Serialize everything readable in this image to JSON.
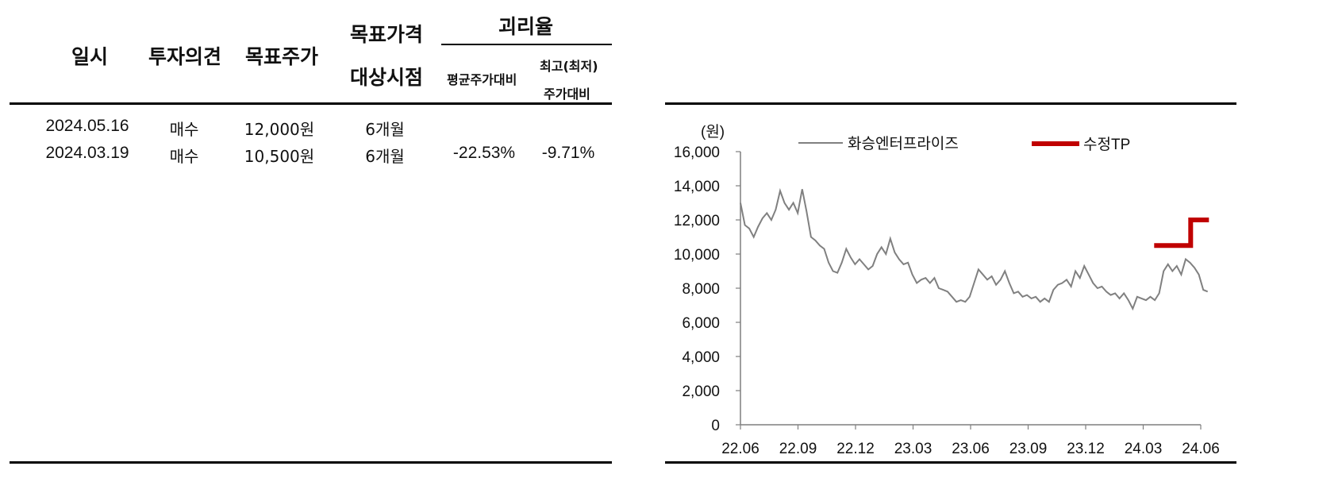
{
  "table": {
    "headers": {
      "date": "일시",
      "opinion": "투자의견",
      "target_price": "목표주가",
      "target_period_line1": "목표가격",
      "target_period_line2": "대상시점",
      "disparity": "괴리율",
      "avg_vs": "평균주가대비",
      "high_low_vs_line1": "최고(최저)",
      "high_low_vs_line2": "주가대비"
    },
    "rows": [
      {
        "date": "2024.05.16",
        "opinion": "매수",
        "target": "12,000원",
        "period": "6개월",
        "avg": "",
        "hl": ""
      },
      {
        "date": "2024.03.19",
        "opinion": "매수",
        "target": "10,500원",
        "period": "6개월",
        "avg": "-22.53%",
        "hl": "-9.71%"
      }
    ]
  },
  "chart_data": {
    "type": "line",
    "ylabel": "(원)",
    "ylim": [
      0,
      16000
    ],
    "y_ticks": [
      "0",
      "2,000",
      "4,000",
      "6,000",
      "8,000",
      "10,000",
      "12,000",
      "14,000",
      "16,000"
    ],
    "x_ticks": [
      "22.06",
      "22.09",
      "22.12",
      "23.03",
      "23.06",
      "23.09",
      "23.12",
      "24.03",
      "24.06"
    ],
    "legend_placement": "top",
    "series": [
      {
        "name": "화승엔터프라이즈",
        "color": "#808080",
        "points": [
          [
            "2022-06-01",
            13000
          ],
          [
            "2022-06-08",
            11700
          ],
          [
            "2022-06-15",
            11500
          ],
          [
            "2022-06-22",
            11000
          ],
          [
            "2022-06-29",
            11600
          ],
          [
            "2022-07-06",
            12100
          ],
          [
            "2022-07-13",
            12400
          ],
          [
            "2022-07-20",
            12000
          ],
          [
            "2022-07-27",
            12600
          ],
          [
            "2022-08-03",
            13700
          ],
          [
            "2022-08-10",
            13000
          ],
          [
            "2022-08-17",
            12600
          ],
          [
            "2022-08-24",
            13000
          ],
          [
            "2022-08-31",
            12400
          ],
          [
            "2022-09-07",
            13800
          ],
          [
            "2022-09-14",
            12500
          ],
          [
            "2022-09-21",
            11000
          ],
          [
            "2022-09-28",
            10800
          ],
          [
            "2022-10-05",
            10500
          ],
          [
            "2022-10-12",
            10300
          ],
          [
            "2022-10-19",
            9500
          ],
          [
            "2022-10-26",
            9000
          ],
          [
            "2022-11-02",
            8900
          ],
          [
            "2022-11-09",
            9500
          ],
          [
            "2022-11-16",
            10300
          ],
          [
            "2022-11-23",
            9800
          ],
          [
            "2022-11-30",
            9400
          ],
          [
            "2022-12-07",
            9700
          ],
          [
            "2022-12-14",
            9400
          ],
          [
            "2022-12-21",
            9100
          ],
          [
            "2022-12-28",
            9300
          ],
          [
            "2023-01-04",
            10000
          ],
          [
            "2023-01-11",
            10400
          ],
          [
            "2023-01-18",
            10000
          ],
          [
            "2023-01-25",
            10900
          ],
          [
            "2023-02-01",
            10100
          ],
          [
            "2023-02-08",
            9700
          ],
          [
            "2023-02-15",
            9400
          ],
          [
            "2023-02-22",
            9500
          ],
          [
            "2023-03-01",
            8800
          ],
          [
            "2023-03-08",
            8300
          ],
          [
            "2023-03-15",
            8500
          ],
          [
            "2023-03-22",
            8600
          ],
          [
            "2023-03-29",
            8300
          ],
          [
            "2023-04-05",
            8600
          ],
          [
            "2023-04-12",
            8000
          ],
          [
            "2023-04-19",
            7900
          ],
          [
            "2023-04-26",
            7800
          ],
          [
            "2023-05-03",
            7500
          ],
          [
            "2023-05-10",
            7200
          ],
          [
            "2023-05-17",
            7300
          ],
          [
            "2023-05-24",
            7200
          ],
          [
            "2023-05-31",
            7500
          ],
          [
            "2023-06-07",
            8300
          ],
          [
            "2023-06-14",
            9100
          ],
          [
            "2023-06-21",
            8800
          ],
          [
            "2023-06-28",
            8500
          ],
          [
            "2023-07-05",
            8700
          ],
          [
            "2023-07-12",
            8200
          ],
          [
            "2023-07-19",
            8500
          ],
          [
            "2023-07-26",
            9000
          ],
          [
            "2023-08-02",
            8300
          ],
          [
            "2023-08-09",
            7700
          ],
          [
            "2023-08-16",
            7800
          ],
          [
            "2023-08-23",
            7500
          ],
          [
            "2023-08-30",
            7600
          ],
          [
            "2023-09-06",
            7400
          ],
          [
            "2023-09-13",
            7500
          ],
          [
            "2023-09-20",
            7200
          ],
          [
            "2023-09-27",
            7400
          ],
          [
            "2023-10-04",
            7200
          ],
          [
            "2023-10-11",
            7900
          ],
          [
            "2023-10-18",
            8200
          ],
          [
            "2023-10-25",
            8300
          ],
          [
            "2023-11-01",
            8500
          ],
          [
            "2023-11-08",
            8100
          ],
          [
            "2023-11-15",
            9000
          ],
          [
            "2023-11-22",
            8600
          ],
          [
            "2023-11-29",
            9300
          ],
          [
            "2023-12-06",
            8800
          ],
          [
            "2023-12-13",
            8300
          ],
          [
            "2023-12-20",
            8000
          ],
          [
            "2023-12-27",
            8100
          ],
          [
            "2024-01-03",
            7800
          ],
          [
            "2024-01-10",
            7600
          ],
          [
            "2024-01-17",
            7700
          ],
          [
            "2024-01-24",
            7400
          ],
          [
            "2024-01-31",
            7700
          ],
          [
            "2024-02-07",
            7300
          ],
          [
            "2024-02-14",
            6800
          ],
          [
            "2024-02-21",
            7500
          ],
          [
            "2024-02-28",
            7400
          ],
          [
            "2024-03-06",
            7300
          ],
          [
            "2024-03-13",
            7500
          ],
          [
            "2024-03-20",
            7300
          ],
          [
            "2024-03-27",
            7700
          ],
          [
            "2024-04-03",
            9000
          ],
          [
            "2024-04-10",
            9400
          ],
          [
            "2024-04-17",
            9000
          ],
          [
            "2024-04-24",
            9300
          ],
          [
            "2024-05-01",
            8800
          ],
          [
            "2024-05-08",
            9700
          ],
          [
            "2024-05-15",
            9500
          ],
          [
            "2024-05-22",
            9200
          ],
          [
            "2024-05-29",
            8800
          ],
          [
            "2024-06-05",
            7900
          ],
          [
            "2024-06-12",
            7800
          ]
        ]
      },
      {
        "name": "수정TP",
        "color": "#c00000",
        "points": [
          [
            "2024-03-19",
            10500
          ],
          [
            "2024-05-16",
            10500
          ],
          [
            "2024-05-16",
            12000
          ],
          [
            "2024-06-14",
            12000
          ]
        ]
      }
    ]
  }
}
